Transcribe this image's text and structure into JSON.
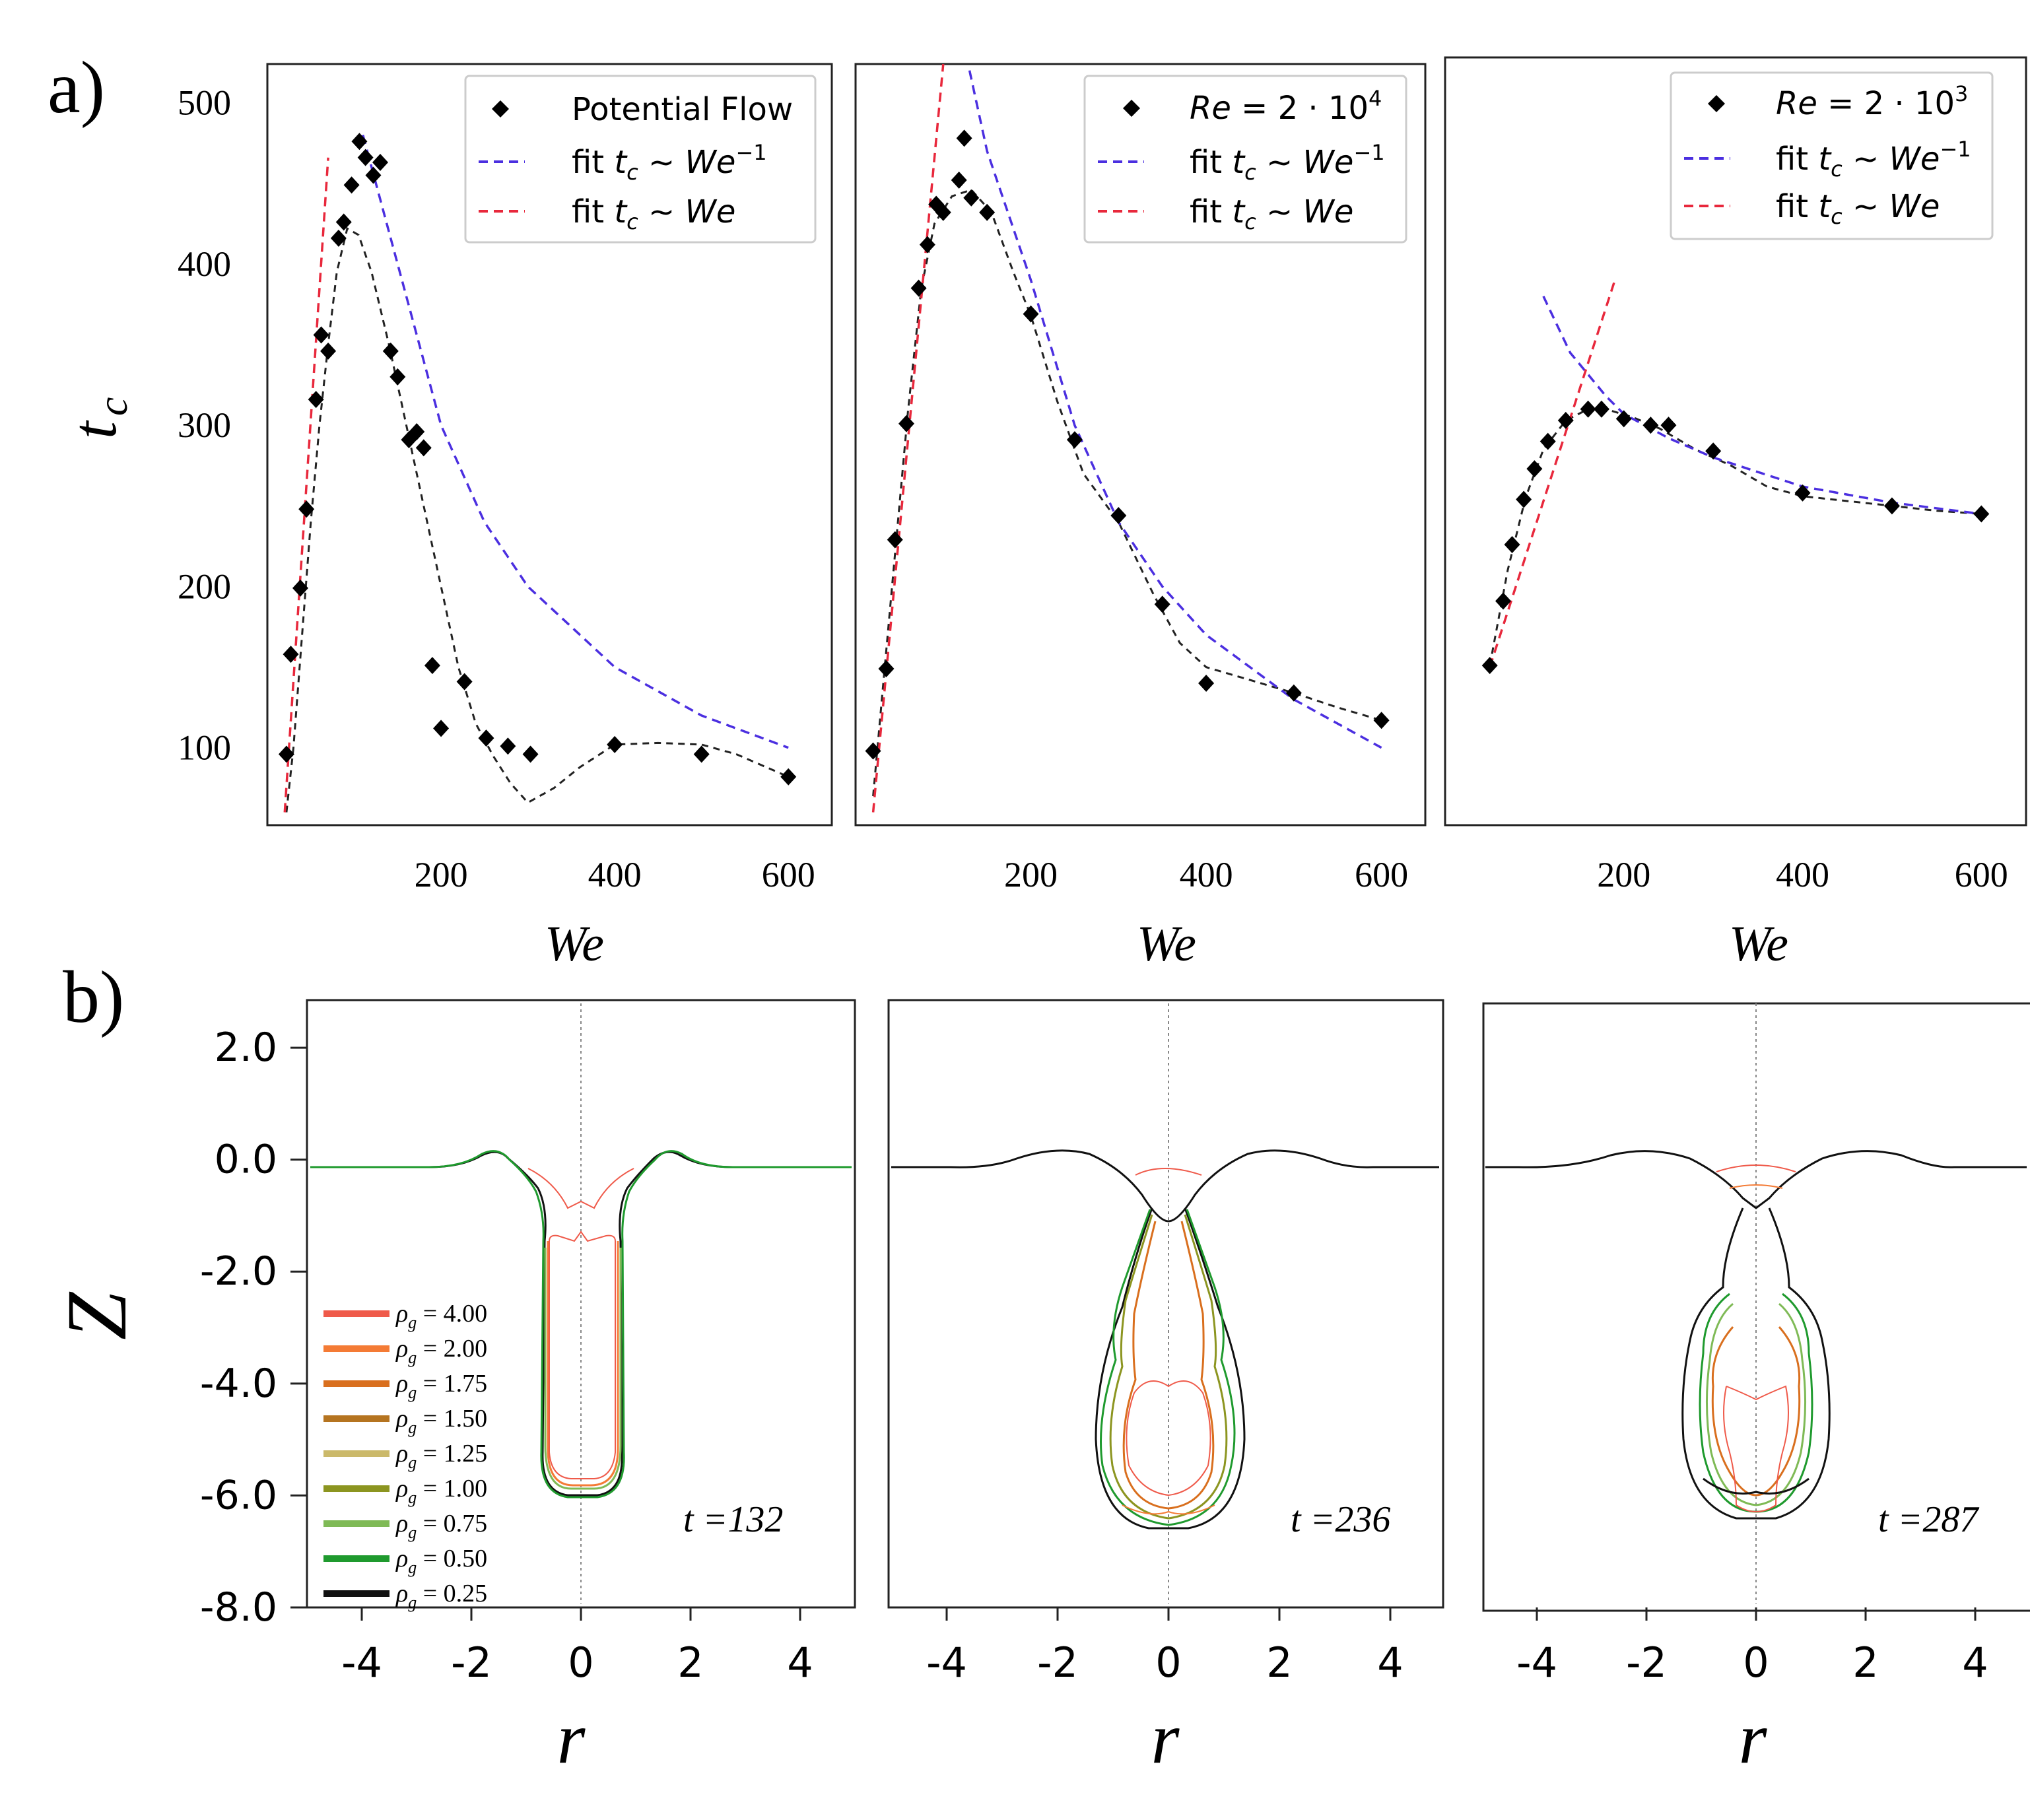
{
  "panel_labels": {
    "a": "a)",
    "b": "b)"
  },
  "chart_data": [
    {
      "type": "scatter",
      "panel": "a-1",
      "xlabel": "We",
      "ylabel": "t_c",
      "xticks": [
        "200",
        "400",
        "600"
      ],
      "yticks": [
        "100",
        "200",
        "300",
        "400",
        "500"
      ],
      "xlim": [
        0,
        650
      ],
      "ylim": [
        52,
        524
      ],
      "legend": {
        "location": "top-right",
        "entries": [
          "Potential Flow",
          "fit t_c ~ We^-1",
          "fit t_c ~ We"
        ]
      },
      "points": [
        [
          22,
          96
        ],
        [
          27,
          158
        ],
        [
          38,
          199
        ],
        [
          45,
          248
        ],
        [
          56,
          316
        ],
        [
          62,
          356
        ],
        [
          70,
          346
        ],
        [
          82,
          416
        ],
        [
          88,
          426
        ],
        [
          97,
          449
        ],
        [
          106,
          476
        ],
        [
          113,
          466
        ],
        [
          122,
          455
        ],
        [
          130,
          463
        ],
        [
          142,
          346
        ],
        [
          150,
          330
        ],
        [
          163,
          291
        ],
        [
          172,
          296
        ],
        [
          180,
          286
        ],
        [
          190,
          151
        ],
        [
          200,
          112
        ],
        [
          227,
          141
        ],
        [
          252,
          106
        ],
        [
          277,
          101
        ],
        [
          303,
          96
        ],
        [
          400,
          102
        ],
        [
          500,
          96
        ],
        [
          600,
          82
        ]
      ],
      "trend": [
        [
          22,
          60
        ],
        [
          30,
          100
        ],
        [
          40,
          170
        ],
        [
          50,
          240
        ],
        [
          60,
          300
        ],
        [
          70,
          350
        ],
        [
          80,
          395
        ],
        [
          92,
          422
        ],
        [
          105,
          418
        ],
        [
          120,
          395
        ],
        [
          140,
          350
        ],
        [
          160,
          300
        ],
        [
          180,
          250
        ],
        [
          200,
          200
        ],
        [
          220,
          150
        ],
        [
          240,
          115
        ],
        [
          260,
          95
        ],
        [
          280,
          78
        ],
        [
          300,
          66
        ],
        [
          330,
          75
        ],
        [
          360,
          88
        ],
        [
          400,
          102
        ],
        [
          450,
          103
        ],
        [
          500,
          102
        ],
        [
          540,
          96
        ],
        [
          600,
          82
        ]
      ],
      "fit_inverse": [
        [
          110,
          480
        ],
        [
          150,
          400
        ],
        [
          200,
          300
        ],
        [
          250,
          240
        ],
        [
          300,
          200
        ],
        [
          400,
          150
        ],
        [
          500,
          120
        ],
        [
          600,
          100
        ]
      ],
      "fit_linear": [
        [
          20,
          60
        ],
        [
          70,
          466
        ]
      ]
    },
    {
      "type": "scatter",
      "panel": "a-2",
      "xlabel": "We",
      "xticks": [
        "200",
        "400",
        "600"
      ],
      "xlim": [
        0,
        650
      ],
      "ylim": [
        52,
        524
      ],
      "legend": {
        "location": "top-right",
        "entries": [
          "Re = 2·10^4",
          "fit t_c ~ We^-1",
          "fit t_c ~ We"
        ]
      },
      "points": [
        [
          20,
          98
        ],
        [
          35,
          149
        ],
        [
          45,
          229
        ],
        [
          58,
          301
        ],
        [
          72,
          385
        ],
        [
          82,
          412
        ],
        [
          92,
          437
        ],
        [
          100,
          432
        ],
        [
          118,
          452
        ],
        [
          124,
          478
        ],
        [
          132,
          441
        ],
        [
          150,
          432
        ],
        [
          200,
          369
        ],
        [
          250,
          291
        ],
        [
          300,
          244
        ],
        [
          350,
          189
        ],
        [
          400,
          140
        ],
        [
          500,
          134
        ],
        [
          600,
          117
        ]
      ],
      "trend": [
        [
          20,
          70
        ],
        [
          30,
          130
        ],
        [
          45,
          220
        ],
        [
          60,
          310
        ],
        [
          75,
          385
        ],
        [
          90,
          425
        ],
        [
          110,
          442
        ],
        [
          132,
          446
        ],
        [
          155,
          432
        ],
        [
          180,
          395
        ],
        [
          200,
          368
        ],
        [
          230,
          315
        ],
        [
          260,
          270
        ],
        [
          300,
          240
        ],
        [
          340,
          195
        ],
        [
          370,
          165
        ],
        [
          400,
          150
        ],
        [
          450,
          142
        ],
        [
          500,
          134
        ],
        [
          550,
          125
        ],
        [
          600,
          117
        ]
      ],
      "fit_inverse": [
        [
          130,
          520
        ],
        [
          150,
          470
        ],
        [
          200,
          390
        ],
        [
          250,
          300
        ],
        [
          300,
          240
        ],
        [
          350,
          200
        ],
        [
          400,
          170
        ],
        [
          500,
          130
        ],
        [
          600,
          100
        ]
      ],
      "fit_linear": [
        [
          20,
          60
        ],
        [
          100,
          524
        ]
      ]
    },
    {
      "type": "scatter",
      "panel": "a-3",
      "xlabel": "We",
      "xticks": [
        "200",
        "400",
        "600"
      ],
      "xlim": [
        0,
        650
      ],
      "ylim": [
        52,
        524
      ],
      "legend": {
        "location": "top-right",
        "entries": [
          "Re = 2·10^3",
          "fit t_c ~ We^-1",
          "fit t_c ~ We"
        ]
      },
      "points": [
        [
          50,
          151
        ],
        [
          65,
          191
        ],
        [
          75,
          226
        ],
        [
          88,
          254
        ],
        [
          100,
          273
        ],
        [
          115,
          290
        ],
        [
          135,
          303
        ],
        [
          160,
          310
        ],
        [
          175,
          310
        ],
        [
          200,
          304
        ],
        [
          230,
          300
        ],
        [
          250,
          300
        ],
        [
          300,
          284
        ],
        [
          400,
          258
        ],
        [
          500,
          250
        ],
        [
          600,
          245
        ]
      ],
      "trend": [
        [
          50,
          151
        ],
        [
          70,
          210
        ],
        [
          90,
          255
        ],
        [
          110,
          285
        ],
        [
          135,
          303
        ],
        [
          160,
          310
        ],
        [
          180,
          310
        ],
        [
          210,
          305
        ],
        [
          240,
          298
        ],
        [
          280,
          285
        ],
        [
          320,
          275
        ],
        [
          360,
          262
        ],
        [
          400,
          256
        ],
        [
          450,
          253
        ],
        [
          500,
          250
        ],
        [
          550,
          247
        ],
        [
          600,
          245
        ]
      ],
      "fit_inverse": [
        [
          110,
          380
        ],
        [
          140,
          345
        ],
        [
          180,
          318
        ],
        [
          200,
          307
        ],
        [
          250,
          292
        ],
        [
          300,
          280
        ],
        [
          400,
          262
        ],
        [
          500,
          252
        ],
        [
          600,
          245
        ]
      ],
      "fit_linear": [
        [
          50,
          150
        ],
        [
          190,
          390
        ]
      ]
    }
  ],
  "profiles": {
    "xlabel": "r",
    "ylabel": "Z",
    "xticks": [
      "-4",
      "-2",
      "0",
      "2",
      "4"
    ],
    "yticks": [
      "2.0",
      "0.0",
      "-2.0",
      "-4.0",
      "-6.0",
      "-8.0"
    ],
    "xlim": [
      -5,
      5
    ],
    "ylim": [
      -8,
      2.85
    ],
    "legend_entries": [
      {
        "label": "ρ_g = 4.00",
        "value": "4.00",
        "color": "#ef5a4a"
      },
      {
        "label": "ρ_g = 2.00",
        "value": "2.00",
        "color": "#f47b35"
      },
      {
        "label": "ρ_g = 1.75",
        "value": "1.75",
        "color": "#d96f1e"
      },
      {
        "label": "ρ_g = 1.50",
        "value": "1.50",
        "color": "#b57420"
      },
      {
        "label": "ρ_g = 1.25",
        "value": "1.25",
        "color": "#cbb96a"
      },
      {
        "label": "ρ_g = 1.00",
        "value": "1.00",
        "color": "#8c9520"
      },
      {
        "label": "ρ_g = 0.75",
        "value": "0.75",
        "color": "#7fba56"
      },
      {
        "label": "ρ_g = 0.50",
        "value": "0.50",
        "color": "#1f9a2e"
      },
      {
        "label": "ρ_g = 0.25",
        "value": "0.25",
        "color": "#111111"
      }
    ],
    "panels": [
      {
        "time_label": "t =132"
      },
      {
        "time_label": "t =236"
      },
      {
        "time_label": "t =287"
      }
    ]
  },
  "colors": {
    "fit_inverse": "#4b2fe0",
    "fit_linear": "#e8283c",
    "points": "#000000",
    "trend": "#222222"
  }
}
